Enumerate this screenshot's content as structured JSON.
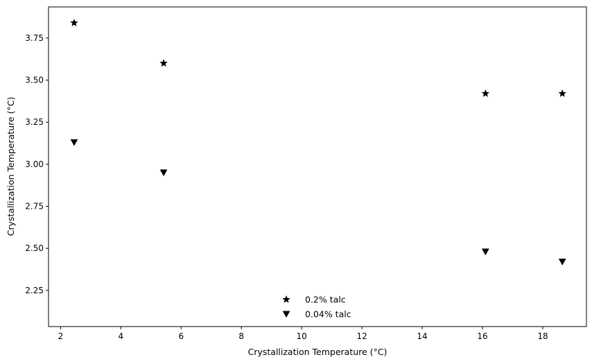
{
  "chart_data": {
    "type": "scatter",
    "title": "",
    "xlabel": "Crystallization Temperature (°C)",
    "ylabel": "Crystallization Temperature (°C)",
    "xlim": [
      1.6,
      19.45
    ],
    "ylim": [
      2.035,
      3.935
    ],
    "xticks": [
      2,
      4,
      6,
      8,
      10,
      12,
      14,
      16,
      18
    ],
    "yticks": [
      2.25,
      2.5,
      2.75,
      3.0,
      3.25,
      3.5,
      3.75
    ],
    "ytick_labels": [
      "2.25",
      "2.50",
      "2.75",
      "3.00",
      "3.25",
      "3.50",
      "3.75"
    ],
    "grid": false,
    "legend_position": "bottom-center",
    "series": [
      {
        "name": "0.2% talc",
        "marker": "star",
        "color": "#000000",
        "x": [
          2.45,
          5.42,
          16.1,
          18.65
        ],
        "y": [
          3.84,
          3.6,
          3.42,
          3.42
        ]
      },
      {
        "name": "0.04% talc",
        "marker": "triangle-down",
        "color": "#000000",
        "x": [
          2.45,
          5.42,
          16.1,
          18.65
        ],
        "y": [
          3.13,
          2.95,
          2.48,
          2.42
        ]
      }
    ]
  }
}
